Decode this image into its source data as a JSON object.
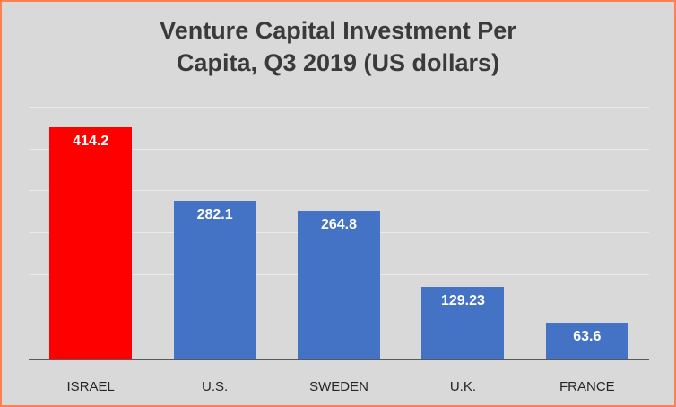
{
  "chart_data": {
    "type": "bar",
    "title": "Venture Capital Investment Per Capita, Q3 2019 (US dollars)",
    "title_lines": [
      "Venture Capital Investment Per",
      "Capita, Q3 2019 (US dollars)"
    ],
    "categories": [
      "ISRAEL",
      "U.S.",
      "SWEDEN",
      "U.K.",
      "FRANCE"
    ],
    "values": [
      414.2,
      282.1,
      264.8,
      129.23,
      63.6
    ],
    "value_labels": [
      "414.2",
      "282.1",
      "264.8",
      "129.23",
      "63.6"
    ],
    "bar_colors": [
      "#ff0000",
      "#4472c4",
      "#4472c4",
      "#4472c4",
      "#4472c4"
    ],
    "xlabel": "",
    "ylabel": "",
    "ylim": [
      0,
      450
    ],
    "gridline_interval": 75,
    "grid": true,
    "legend": "none"
  },
  "style": {
    "background": "#d9d9d9",
    "border_color": "#ff7f50",
    "axis_color": "#595959",
    "gridline_color": "#eaeaea",
    "title_color": "#3a3a3a",
    "value_label_color": "#ffffff",
    "category_label_color": "#262626"
  }
}
